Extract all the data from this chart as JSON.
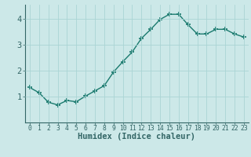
{
  "x": [
    0,
    1,
    2,
    3,
    4,
    5,
    6,
    7,
    8,
    9,
    10,
    11,
    12,
    13,
    14,
    15,
    16,
    17,
    18,
    19,
    20,
    21,
    22,
    23
  ],
  "y": [
    1.35,
    1.15,
    0.78,
    0.68,
    0.85,
    0.8,
    1.02,
    1.22,
    1.42,
    1.95,
    2.35,
    2.72,
    3.25,
    3.6,
    3.98,
    4.18,
    4.18,
    3.78,
    3.42,
    3.42,
    3.6,
    3.6,
    3.42,
    3.3
  ],
  "xlabel": "Humidex (Indice chaleur)",
  "bg_color": "#cce8e8",
  "line_color": "#1a7a6e",
  "marker": "+",
  "marker_size": 4,
  "marker_lw": 1.2,
  "line_width": 1.0,
  "ylim": [
    0.0,
    4.55
  ],
  "yticks": [
    1,
    2,
    3,
    4
  ],
  "ytick_labels": [
    "1",
    "2",
    "3",
    "4"
  ],
  "xtick_labels": [
    "0",
    "1",
    "2",
    "3",
    "4",
    "5",
    "6",
    "7",
    "8",
    "9",
    "10",
    "11",
    "12",
    "13",
    "14",
    "15",
    "16",
    "17",
    "18",
    "19",
    "20",
    "21",
    "22",
    "23"
  ],
  "grid_color": "#aad4d4",
  "axis_color": "#336666",
  "xlabel_fontsize": 7.5,
  "ytick_fontsize": 7.5,
  "xtick_fontsize": 5.8
}
